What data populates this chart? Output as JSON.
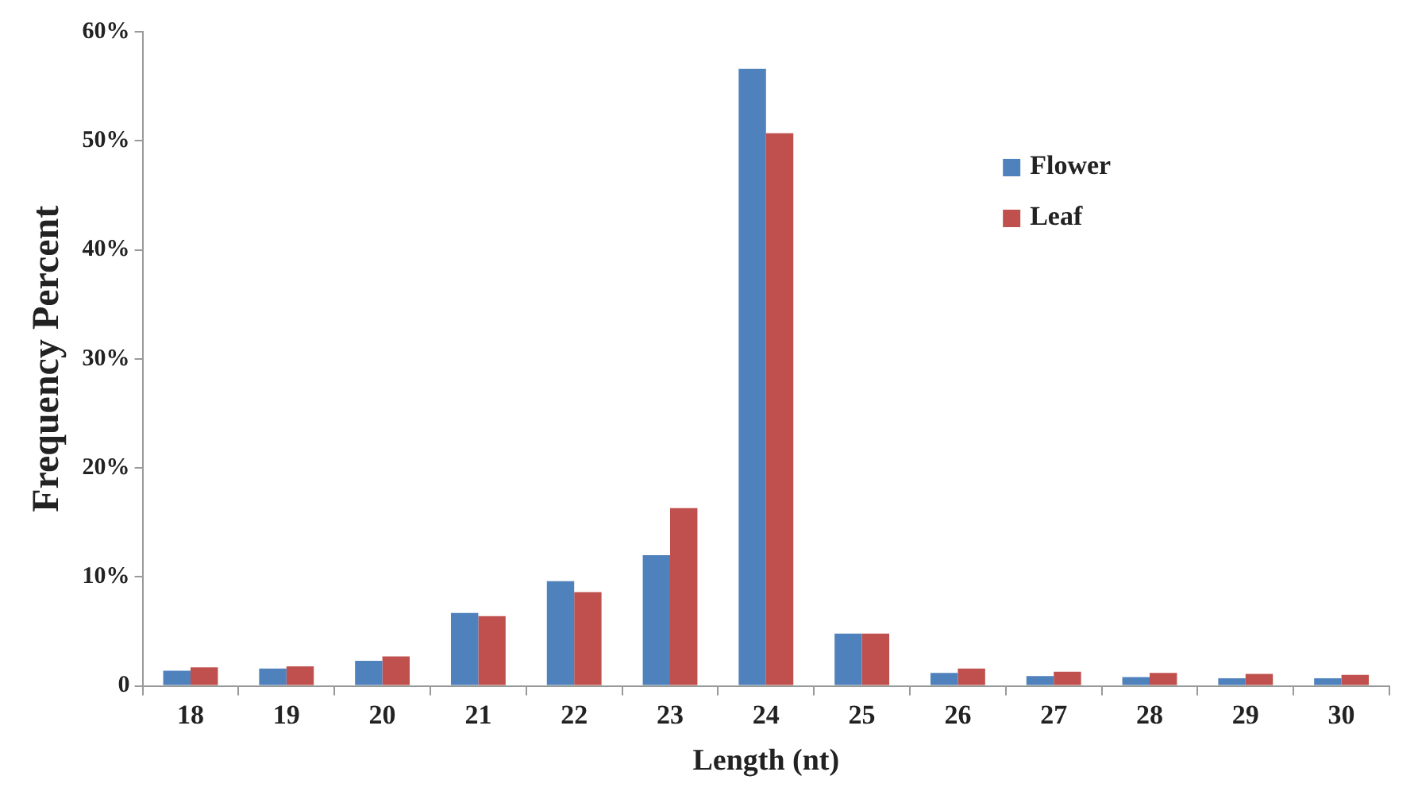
{
  "chart_data": {
    "type": "bar",
    "xlabel": "Length (nt)",
    "ylabel": "Frequency Percent",
    "categories": [
      "18",
      "19",
      "20",
      "21",
      "22",
      "23",
      "24",
      "25",
      "26",
      "27",
      "28",
      "29",
      "30"
    ],
    "series": [
      {
        "name": "Flower",
        "color": "#4f81bd",
        "values": [
          1.4,
          1.6,
          2.3,
          6.7,
          9.6,
          12.0,
          56.6,
          4.8,
          1.2,
          0.9,
          0.8,
          0.7,
          0.7
        ]
      },
      {
        "name": "Leaf",
        "color": "#c0504d",
        "values": [
          1.7,
          1.8,
          2.7,
          6.4,
          8.6,
          16.3,
          50.7,
          4.8,
          1.6,
          1.3,
          1.2,
          1.1,
          1.0
        ]
      }
    ],
    "ylim": [
      0,
      60
    ],
    "yticks": [
      {
        "value": 0,
        "label": "0"
      },
      {
        "value": 10,
        "label": "10%"
      },
      {
        "value": 20,
        "label": "20%"
      },
      {
        "value": 30,
        "label": "30%"
      },
      {
        "value": 40,
        "label": "40%"
      },
      {
        "value": 50,
        "label": "50%"
      },
      {
        "value": 60,
        "label": "60%"
      }
    ],
    "grid": false,
    "legend": "top right"
  }
}
